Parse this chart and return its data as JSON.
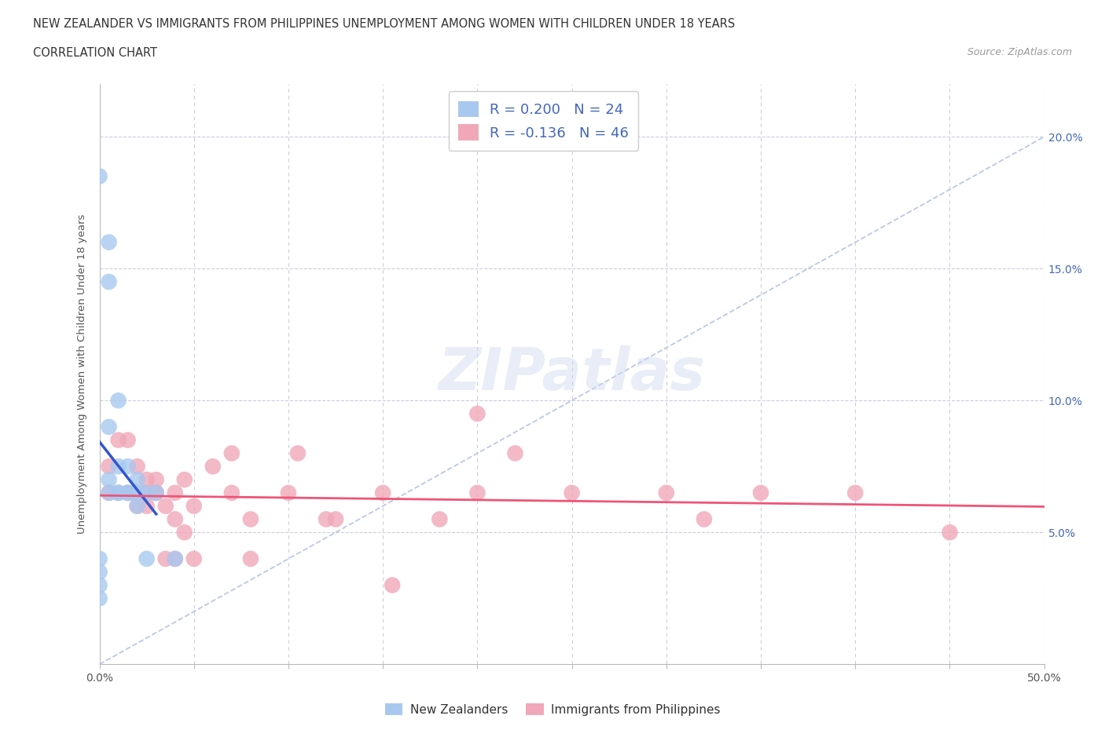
{
  "title_line1": "NEW ZEALANDER VS IMMIGRANTS FROM PHILIPPINES UNEMPLOYMENT AMONG WOMEN WITH CHILDREN UNDER 18 YEARS",
  "title_line2": "CORRELATION CHART",
  "source": "Source: ZipAtlas.com",
  "ylabel": "Unemployment Among Women with Children Under 18 years",
  "xlim": [
    0.0,
    0.5
  ],
  "ylim": [
    0.0,
    0.22
  ],
  "xticks": [
    0.0,
    0.05,
    0.1,
    0.15,
    0.2,
    0.25,
    0.3,
    0.35,
    0.4,
    0.45,
    0.5
  ],
  "xticklabels": [
    "0.0%",
    "",
    "",
    "",
    "",
    "",
    "",
    "",
    "",
    "",
    "50.0%"
  ],
  "yticks": [
    0.0,
    0.05,
    0.1,
    0.15,
    0.2
  ],
  "right_yticklabels": [
    "",
    "5.0%",
    "10.0%",
    "15.0%",
    "20.0%"
  ],
  "nz_R": 0.2,
  "nz_N": 24,
  "ph_R": -0.136,
  "ph_N": 46,
  "nz_color": "#a8c8f0",
  "ph_color": "#f0a8b8",
  "nz_line_color": "#3355cc",
  "ph_line_color": "#ee5577",
  "ref_line_color": "#aabbdd",
  "nz_x": [
    0.0,
    0.0,
    0.0,
    0.0,
    0.0,
    0.005,
    0.005,
    0.005,
    0.005,
    0.005,
    0.01,
    0.01,
    0.01,
    0.01,
    0.015,
    0.015,
    0.015,
    0.02,
    0.02,
    0.02,
    0.025,
    0.025,
    0.03,
    0.04
  ],
  "nz_y": [
    0.185,
    0.04,
    0.035,
    0.03,
    0.025,
    0.16,
    0.145,
    0.09,
    0.07,
    0.065,
    0.1,
    0.075,
    0.065,
    0.065,
    0.075,
    0.065,
    0.065,
    0.07,
    0.065,
    0.06,
    0.065,
    0.04,
    0.065,
    0.04
  ],
  "ph_x": [
    0.005,
    0.005,
    0.01,
    0.01,
    0.015,
    0.015,
    0.015,
    0.02,
    0.02,
    0.02,
    0.025,
    0.025,
    0.025,
    0.03,
    0.03,
    0.03,
    0.035,
    0.035,
    0.04,
    0.04,
    0.04,
    0.045,
    0.045,
    0.05,
    0.05,
    0.06,
    0.07,
    0.07,
    0.08,
    0.08,
    0.1,
    0.105,
    0.12,
    0.125,
    0.15,
    0.155,
    0.18,
    0.2,
    0.2,
    0.22,
    0.25,
    0.3,
    0.32,
    0.35,
    0.4,
    0.45
  ],
  "ph_y": [
    0.075,
    0.065,
    0.085,
    0.065,
    0.085,
    0.065,
    0.065,
    0.075,
    0.065,
    0.06,
    0.07,
    0.065,
    0.06,
    0.07,
    0.065,
    0.065,
    0.06,
    0.04,
    0.065,
    0.055,
    0.04,
    0.07,
    0.05,
    0.06,
    0.04,
    0.075,
    0.065,
    0.08,
    0.055,
    0.04,
    0.065,
    0.08,
    0.055,
    0.055,
    0.065,
    0.03,
    0.055,
    0.095,
    0.065,
    0.08,
    0.065,
    0.065,
    0.055,
    0.065,
    0.065,
    0.05
  ],
  "legend_label_nz": "New Zealanders",
  "legend_label_ph": "Immigrants from Philippines",
  "watermark": "ZIPatlas",
  "background_color": "#ffffff",
  "grid_color": "#ccccdd"
}
